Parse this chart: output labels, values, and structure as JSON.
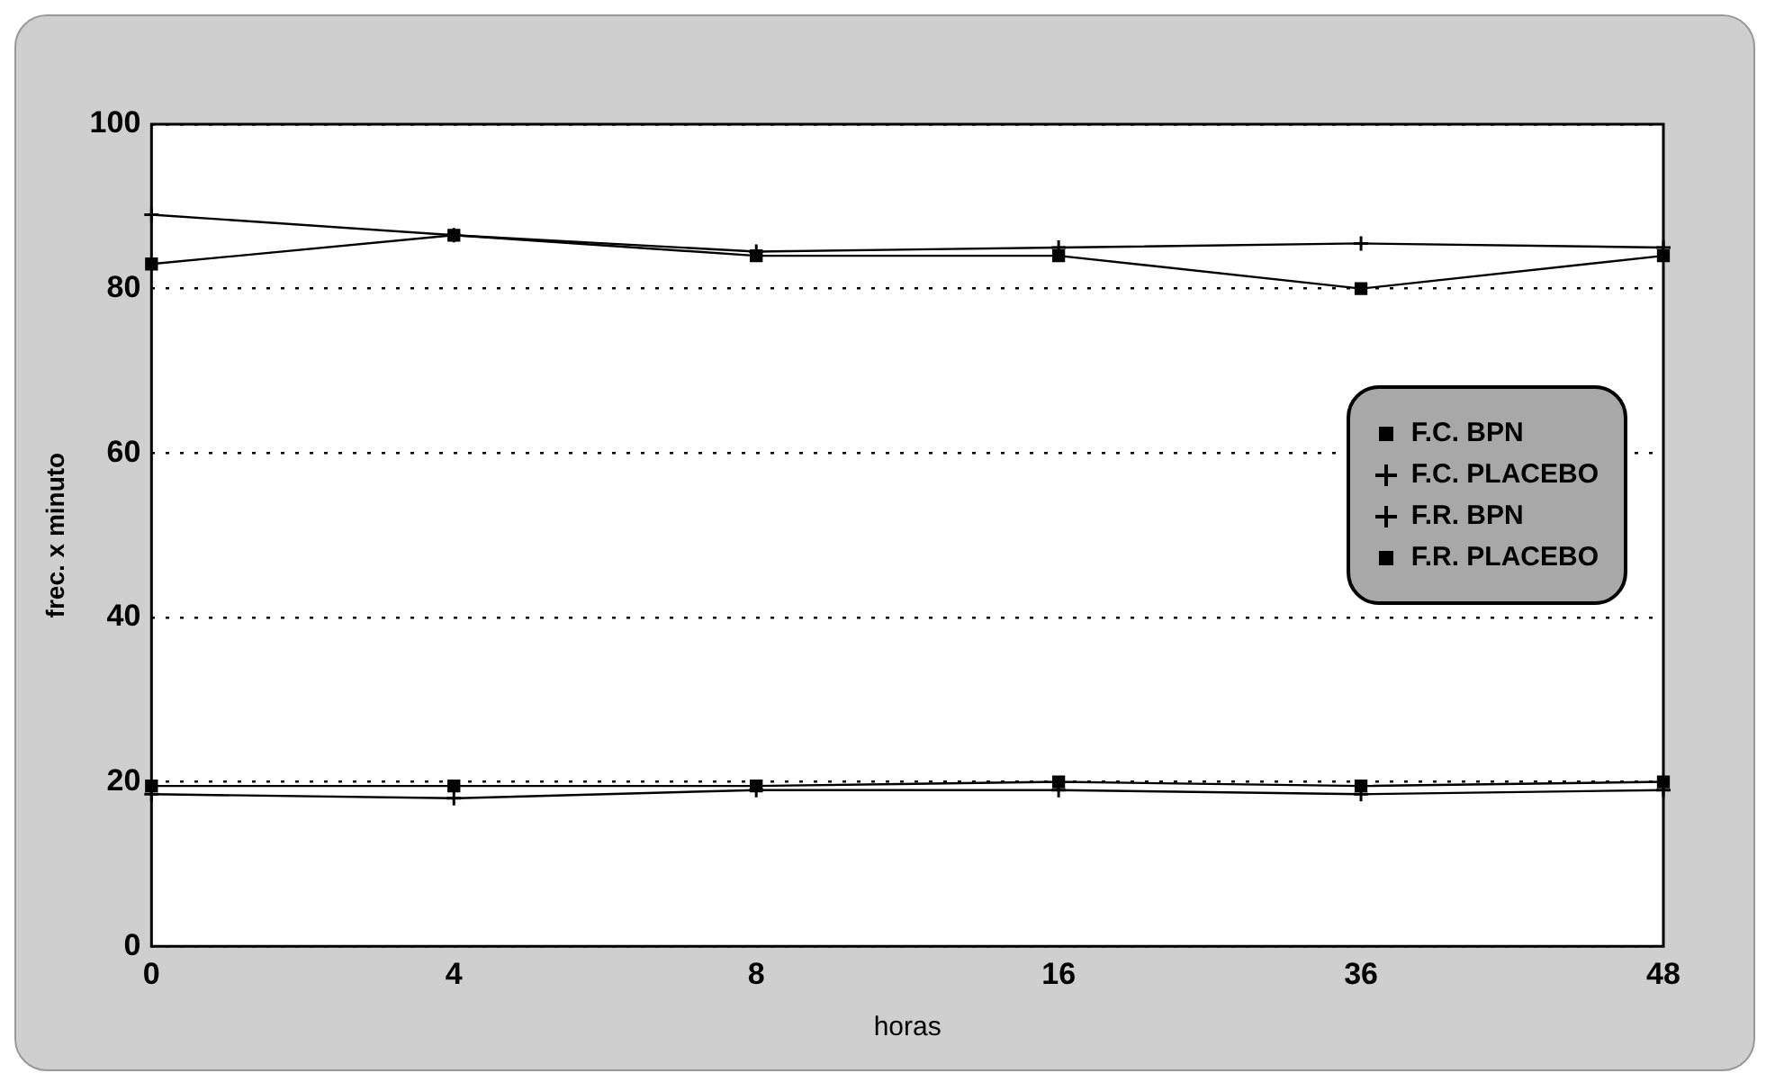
{
  "chart_data": {
    "type": "line",
    "xlabel": "horas",
    "ylabel": "frec. x minuto",
    "categories": [
      "0",
      "4",
      "8",
      "16",
      "36",
      "48"
    ],
    "series": [
      {
        "name": "F.C. BPN",
        "color": "#000000",
        "marker": "square",
        "values": [
          83,
          86.5,
          84,
          84,
          80,
          84
        ]
      },
      {
        "name": "F.C. PLACEBO",
        "color": "#000000",
        "marker": "cross",
        "values": [
          89,
          86.5,
          84.5,
          85,
          85.5,
          85
        ]
      },
      {
        "name": "F.R. BPN",
        "color": "#000000",
        "marker": "cross",
        "values": [
          18.5,
          18,
          19,
          19,
          18.5,
          19
        ]
      },
      {
        "name": "F.R. PLACEBO",
        "color": "#000000",
        "marker": "square",
        "values": [
          19.5,
          19.5,
          19.5,
          20,
          19.5,
          20
        ]
      }
    ],
    "ylim": [
      0,
      100
    ],
    "yticks": [
      0,
      20,
      40,
      60,
      80,
      100
    ],
    "grid": "y",
    "legend": "right",
    "line_style": "solid"
  }
}
